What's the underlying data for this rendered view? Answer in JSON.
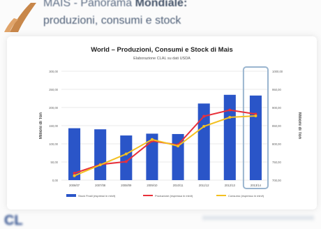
{
  "header": {
    "line1_prefix": "MAIS - Panorama ",
    "line1_bold": "Mondiale:",
    "line2": "produzioni, consumi e stock"
  },
  "footer": {
    "logo": "CL"
  },
  "colors": {
    "bar": "#2a55c8",
    "production": "#e8303a",
    "consumption": "#f3c021",
    "highlight_box": "#9ab5cf"
  },
  "chart_data": {
    "type": "bar",
    "title": "World – Produzioni, Consumi e Stock di Mais",
    "subtitle": "Elaborazione CLAL su dati USDA",
    "ylabel_left": "Milioni di Ton",
    "ylabel_right": "Milioni di Ton",
    "categories": [
      "2006/07",
      "2007/08",
      "2008/09",
      "2009/10",
      "2010/11",
      "2011/12",
      "2012/13",
      "2013/14"
    ],
    "left_axis": {
      "min": 0,
      "max": 300,
      "ticks": [
        "0,00",
        "50,00",
        "100,00",
        "150,00",
        "200,00",
        "250,00",
        "300,00"
      ]
    },
    "right_axis": {
      "min": 700,
      "max": 1000,
      "ticks": [
        "700,00",
        "750,00",
        "800,00",
        "850,00",
        "900,00",
        "950,00",
        "1000,00"
      ]
    },
    "series": [
      {
        "name": "Stock Finali (espressi in mln/t)",
        "axis": "left",
        "render": "bar",
        "values": [
          143,
          140,
          123,
          128,
          127,
          211,
          235,
          233
        ]
      },
      {
        "name": "Produzione (espressa in mln/t)",
        "axis": "right",
        "render": "line",
        "values": [
          719,
          743,
          751,
          808,
          797,
          876,
          893,
          882
        ]
      },
      {
        "name": "Consumo (espresso in mln/t)",
        "axis": "right",
        "render": "line",
        "values": [
          712,
          742,
          772,
          812,
          794,
          848,
          873,
          877
        ]
      }
    ],
    "highlight_category": "2013/14",
    "legend_position": "bottom",
    "grid": true
  }
}
